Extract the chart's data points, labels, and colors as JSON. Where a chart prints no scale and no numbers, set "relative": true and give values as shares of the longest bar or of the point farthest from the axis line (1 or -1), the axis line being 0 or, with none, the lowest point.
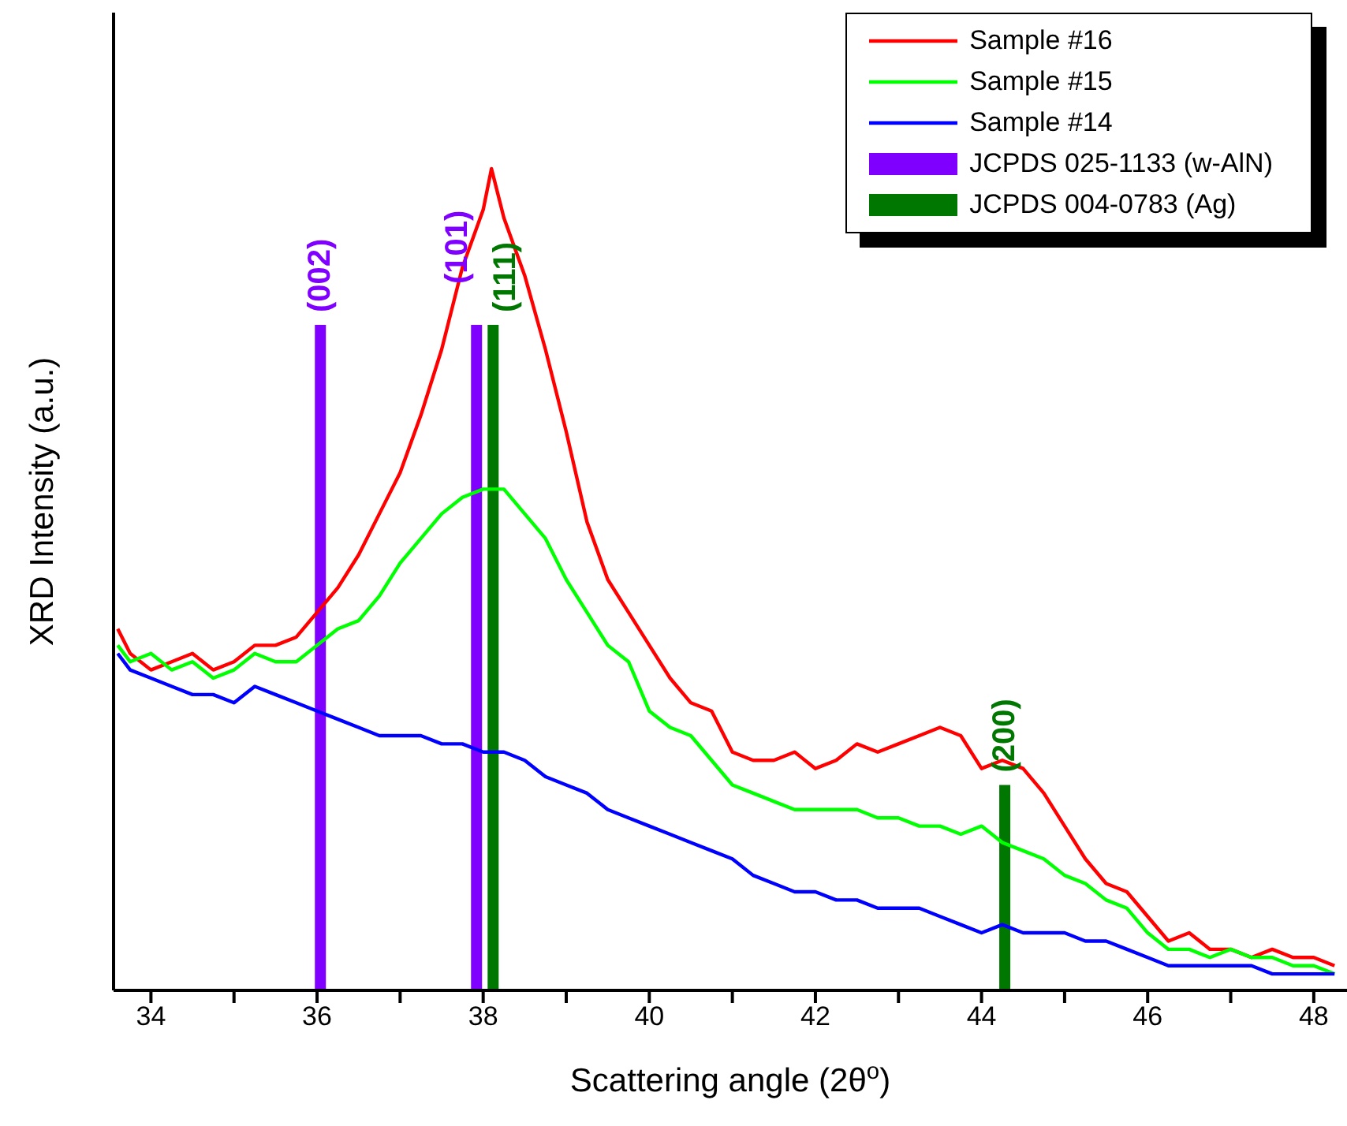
{
  "chart_data": {
    "type": "line",
    "xlabel": "Scattering angle (2θ$^{o}$)",
    "ylabel": "XRD Intensity (a.u.)",
    "relative": true,
    "tick_labels": "x",
    "legend": "top right",
    "marker": "none",
    "line_style": "solid",
    "xlim": [
      33.55,
      48.4
    ],
    "xticks": [
      34,
      {
        "value": 35,
        "label": null
      },
      36,
      {
        "value": 37,
        "label": null
      },
      38,
      {
        "value": 39,
        "label": null
      },
      40,
      {
        "value": 41,
        "label": null
      },
      42,
      {
        "value": 43,
        "label": null
      },
      44,
      {
        "value": 45,
        "label": null
      },
      46,
      {
        "value": 47,
        "label": null
      },
      48
    ],
    "series": [
      {
        "name": "Sample #16",
        "color": "#ff0000",
        "x": [
          33.6,
          33.75,
          34.0,
          34.25,
          34.5,
          34.75,
          35.0,
          35.25,
          35.5,
          35.75,
          36.0,
          36.25,
          36.5,
          36.75,
          37.0,
          37.25,
          37.5,
          37.75,
          38.0,
          38.1,
          38.25,
          38.5,
          38.75,
          39.0,
          39.25,
          39.5,
          39.75,
          40.0,
          40.25,
          40.5,
          40.75,
          41.0,
          41.25,
          41.5,
          41.75,
          42.0,
          42.25,
          42.5,
          42.75,
          43.0,
          43.25,
          43.5,
          43.75,
          44.0,
          44.25,
          44.5,
          44.75,
          45.0,
          45.25,
          45.5,
          45.75,
          46.0,
          46.25,
          46.5,
          46.75,
          47.0,
          47.25,
          47.5,
          47.75,
          48.0,
          48.25
        ],
        "values": [
          0.44,
          0.41,
          0.39,
          0.4,
          0.41,
          0.39,
          0.4,
          0.42,
          0.42,
          0.43,
          0.46,
          0.49,
          0.53,
          0.58,
          0.63,
          0.7,
          0.78,
          0.88,
          0.95,
          1.0,
          0.94,
          0.87,
          0.78,
          0.68,
          0.57,
          0.5,
          0.46,
          0.42,
          0.38,
          0.35,
          0.34,
          0.29,
          0.28,
          0.28,
          0.29,
          0.27,
          0.28,
          0.3,
          0.29,
          0.3,
          0.31,
          0.32,
          0.31,
          0.27,
          0.28,
          0.27,
          0.24,
          0.2,
          0.16,
          0.13,
          0.12,
          0.09,
          0.06,
          0.07,
          0.05,
          0.05,
          0.04,
          0.05,
          0.04,
          0.04,
          0.03
        ]
      },
      {
        "name": "Sample #15",
        "color": "#00ff00",
        "x": [
          33.6,
          33.75,
          34.0,
          34.25,
          34.5,
          34.75,
          35.0,
          35.25,
          35.5,
          35.75,
          36.0,
          36.25,
          36.5,
          36.75,
          37.0,
          37.25,
          37.5,
          37.75,
          38.0,
          38.25,
          38.5,
          38.75,
          39.0,
          39.25,
          39.5,
          39.75,
          40.0,
          40.25,
          40.5,
          40.75,
          41.0,
          41.25,
          41.5,
          41.75,
          42.0,
          42.25,
          42.5,
          42.75,
          43.0,
          43.25,
          43.5,
          43.75,
          44.0,
          44.25,
          44.5,
          44.75,
          45.0,
          45.25,
          45.5,
          45.75,
          46.0,
          46.25,
          46.5,
          46.75,
          47.0,
          47.25,
          47.5,
          47.75,
          48.0,
          48.25
        ],
        "values": [
          0.42,
          0.4,
          0.41,
          0.39,
          0.4,
          0.38,
          0.39,
          0.41,
          0.4,
          0.4,
          0.42,
          0.44,
          0.45,
          0.48,
          0.52,
          0.55,
          0.58,
          0.6,
          0.61,
          0.61,
          0.58,
          0.55,
          0.5,
          0.46,
          0.42,
          0.4,
          0.34,
          0.32,
          0.31,
          0.28,
          0.25,
          0.24,
          0.23,
          0.22,
          0.22,
          0.22,
          0.22,
          0.21,
          0.21,
          0.2,
          0.2,
          0.19,
          0.2,
          0.18,
          0.17,
          0.16,
          0.14,
          0.13,
          0.11,
          0.1,
          0.07,
          0.05,
          0.05,
          0.04,
          0.05,
          0.04,
          0.04,
          0.03,
          0.03,
          0.02
        ]
      },
      {
        "name": "Sample #14",
        "color": "#0000ff",
        "x": [
          33.6,
          33.75,
          34.0,
          34.25,
          34.5,
          34.75,
          35.0,
          35.25,
          35.5,
          35.75,
          36.0,
          36.25,
          36.5,
          36.75,
          37.0,
          37.25,
          37.5,
          37.75,
          38.0,
          38.25,
          38.5,
          38.75,
          39.0,
          39.25,
          39.5,
          39.75,
          40.0,
          40.25,
          40.5,
          40.75,
          41.0,
          41.25,
          41.5,
          41.75,
          42.0,
          42.25,
          42.5,
          42.75,
          43.0,
          43.25,
          43.5,
          43.75,
          44.0,
          44.25,
          44.5,
          44.75,
          45.0,
          45.25,
          45.5,
          45.75,
          46.0,
          46.25,
          46.5,
          46.75,
          47.0,
          47.25,
          47.5,
          47.75,
          48.0,
          48.25
        ],
        "values": [
          0.41,
          0.39,
          0.38,
          0.37,
          0.36,
          0.36,
          0.35,
          0.37,
          0.36,
          0.35,
          0.34,
          0.33,
          0.32,
          0.31,
          0.31,
          0.31,
          0.3,
          0.3,
          0.29,
          0.29,
          0.28,
          0.26,
          0.25,
          0.24,
          0.22,
          0.21,
          0.2,
          0.19,
          0.18,
          0.17,
          0.16,
          0.14,
          0.13,
          0.12,
          0.12,
          0.11,
          0.11,
          0.1,
          0.1,
          0.1,
          0.09,
          0.08,
          0.07,
          0.08,
          0.07,
          0.07,
          0.07,
          0.06,
          0.06,
          0.05,
          0.04,
          0.03,
          0.03,
          0.03,
          0.03,
          0.03,
          0.02,
          0.02,
          0.02,
          0.02
        ]
      },
      {
        "name": "JCPDS 025-1133 (w-AlN)",
        "type": "bar",
        "color": "#8000ff",
        "x": [
          36.04,
          37.92
        ],
        "values": [
          0.81,
          0.81
        ]
      },
      {
        "name": "JCPDS 004-0783 (Ag)",
        "type": "bar",
        "color": "#007700",
        "x": [
          38.12,
          44.28
        ],
        "values": [
          0.81,
          0.25
        ]
      }
    ],
    "annotations": [
      {
        "text": "(002)",
        "x": 36.04,
        "y": 0.81
      },
      {
        "text": "(101)",
        "x": 37.92,
        "y": 0.81
      },
      {
        "text": "(111)",
        "x": 38.12,
        "y": 0.81
      },
      {
        "text": "(200)",
        "x": 44.28,
        "y": 0.25
      }
    ]
  }
}
